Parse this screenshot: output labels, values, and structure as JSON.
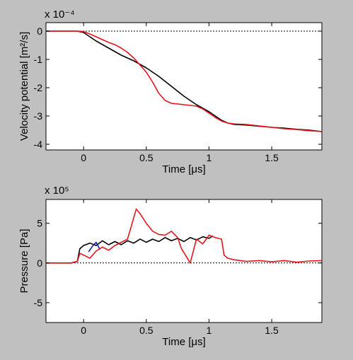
{
  "chart_data": [
    {
      "type": "line",
      "xlabel": "Time [μs]",
      "ylabel": "Velocity potential [m²/s]",
      "y_multiplier": "x 10⁻⁴",
      "xlim": [
        -0.3,
        1.9
      ],
      "ylim": [
        -4.2,
        0.3
      ],
      "xticks": [
        0,
        0.5,
        1,
        1.5
      ],
      "xtick_labels": [
        "0",
        "0.5",
        "1",
        "1.5"
      ],
      "yticks": [
        0,
        -1,
        -2,
        -3,
        -4
      ],
      "ytick_labels": [
        "0",
        "-1",
        "-2",
        "-3",
        "-4"
      ],
      "reference_line": 0,
      "series": [
        {
          "color": "#000000",
          "x": [
            -0.3,
            -0.05,
            0.0,
            0.05,
            0.1,
            0.2,
            0.3,
            0.4,
            0.5,
            0.6,
            0.7,
            0.8,
            0.9,
            1.0,
            1.05,
            1.1,
            1.15,
            1.2,
            1.3,
            1.4,
            1.5,
            1.6,
            1.7,
            1.8,
            1.9
          ],
          "y": [
            0,
            0,
            -0.05,
            -0.2,
            -0.35,
            -0.6,
            -0.85,
            -1.05,
            -1.3,
            -1.6,
            -1.95,
            -2.3,
            -2.6,
            -2.85,
            -3.0,
            -3.15,
            -3.25,
            -3.3,
            -3.32,
            -3.36,
            -3.4,
            -3.43,
            -3.47,
            -3.5,
            -3.55
          ]
        },
        {
          "color": "#e8141b",
          "x": [
            -0.3,
            -0.05,
            0.0,
            0.05,
            0.1,
            0.15,
            0.2,
            0.25,
            0.3,
            0.35,
            0.4,
            0.45,
            0.5,
            0.55,
            0.6,
            0.65,
            0.7,
            0.8,
            0.9,
            0.95,
            1.0,
            1.05,
            1.1,
            1.15,
            1.2,
            1.3,
            1.4,
            1.5,
            1.6,
            1.7,
            1.8,
            1.9
          ],
          "y": [
            0,
            0,
            -0.02,
            -0.1,
            -0.2,
            -0.3,
            -0.4,
            -0.48,
            -0.6,
            -0.75,
            -0.95,
            -1.2,
            -1.45,
            -1.8,
            -2.2,
            -2.45,
            -2.55,
            -2.6,
            -2.65,
            -2.75,
            -2.9,
            -3.05,
            -3.18,
            -3.25,
            -3.28,
            -3.3,
            -3.35,
            -3.4,
            -3.45,
            -3.48,
            -3.52,
            -3.55
          ]
        }
      ]
    },
    {
      "type": "line",
      "xlabel": "Time [μs]",
      "ylabel": "Pressure [Pa]",
      "y_multiplier": "x 10⁵",
      "xlim": [
        -0.3,
        1.9
      ],
      "ylim": [
        -7.5,
        8.0
      ],
      "xticks": [
        0,
        0.5,
        1,
        1.5
      ],
      "xtick_labels": [
        "0",
        "0.5",
        "1",
        "1.5"
      ],
      "yticks": [
        5,
        0,
        -5
      ],
      "ytick_labels": [
        "5",
        "0",
        "-5"
      ],
      "reference_line": 0,
      "series": [
        {
          "color": "#000000",
          "x": [
            -0.3,
            -0.1,
            -0.05,
            -0.03,
            0.0,
            0.05,
            0.1,
            0.15,
            0.2,
            0.25,
            0.3,
            0.35,
            0.4,
            0.45,
            0.5,
            0.55,
            0.6,
            0.65,
            0.7,
            0.75,
            0.8,
            0.85,
            0.9,
            0.95,
            1.0,
            1.03
          ],
          "y": [
            0,
            0,
            0.2,
            1.8,
            2.2,
            2.5,
            2.2,
            2.8,
            2.3,
            2.7,
            2.3,
            2.8,
            2.5,
            3.0,
            2.6,
            3.0,
            2.7,
            3.2,
            2.8,
            3.1,
            2.7,
            3.2,
            2.9,
            3.3,
            3.1,
            3.4
          ]
        },
        {
          "color": "#1a1aa0",
          "x": [
            0.04,
            0.07,
            0.1,
            0.13
          ],
          "y": [
            1.4,
            2.1,
            2.6,
            1.7
          ]
        },
        {
          "color": "#e8141b",
          "x": [
            -0.3,
            -0.1,
            -0.05,
            -0.03,
            0.0,
            0.05,
            0.1,
            0.15,
            0.2,
            0.25,
            0.3,
            0.35,
            0.38,
            0.42,
            0.45,
            0.5,
            0.55,
            0.6,
            0.65,
            0.7,
            0.75,
            0.78,
            0.82,
            0.85,
            0.88,
            0.9,
            0.95,
            1.0,
            1.05,
            1.1,
            1.12,
            1.15,
            1.2,
            1.3,
            1.4,
            1.5,
            1.6,
            1.7,
            1.8,
            1.9
          ],
          "y": [
            0,
            0,
            0.2,
            1.2,
            1.0,
            0.6,
            1.5,
            2.0,
            1.6,
            2.2,
            2.6,
            3.0,
            4.6,
            6.8,
            6.2,
            5.0,
            4.0,
            3.6,
            3.5,
            4.0,
            3.2,
            1.8,
            0.8,
            0.0,
            1.8,
            3.0,
            2.4,
            3.5,
            3.2,
            3.0,
            1.0,
            0.6,
            0.4,
            0.2,
            0.3,
            0.15,
            0.3,
            0.1,
            0.25,
            0.3
          ]
        }
      ]
    }
  ]
}
